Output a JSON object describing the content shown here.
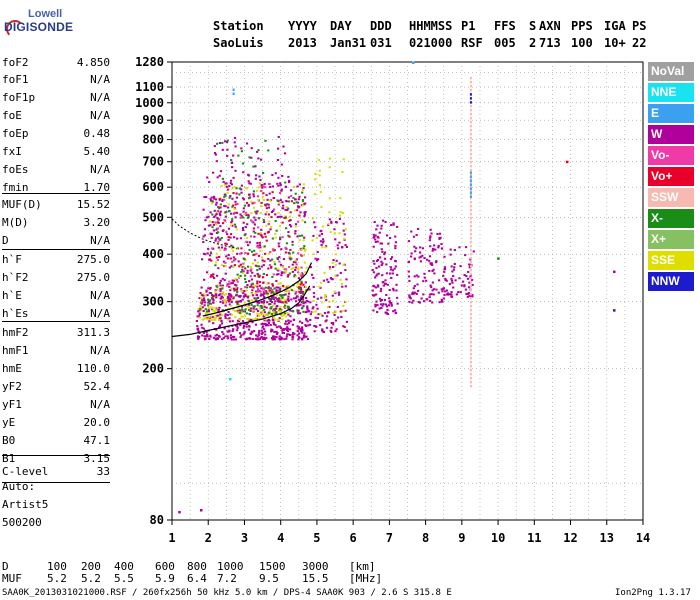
{
  "logo": {
    "line1": "Lowell",
    "line2": "DIGISONDE"
  },
  "header": {
    "labels": [
      "Station",
      "YYYY",
      "DAY",
      "DDD",
      "HHMMSS",
      "P1",
      "FFS",
      "S",
      "AXN",
      "PPS",
      "IGA",
      "PS"
    ],
    "values": [
      "SaoLuis",
      "2013",
      "Jan31",
      "031",
      "021000",
      "RSF",
      "005",
      "2",
      "713",
      "100",
      "10+",
      "22"
    ]
  },
  "parameters": [
    {
      "name": "foF2",
      "value": "4.850"
    },
    {
      "name": "foF1",
      "value": "N/A"
    },
    {
      "name": "foF1p",
      "value": "N/A"
    },
    {
      "name": "foE",
      "value": "N/A"
    },
    {
      "name": "foEp",
      "value": "0.48"
    },
    {
      "name": "fxI",
      "value": "5.40"
    },
    {
      "name": "foEs",
      "value": "N/A"
    },
    {
      "name": "fmin",
      "value": "1.70"
    },
    {
      "name": "MUF(D)",
      "value": "15.52"
    },
    {
      "name": "M(D)",
      "value": "3.20"
    },
    {
      "name": "D",
      "value": "N/A"
    },
    {
      "name": "h`F",
      "value": "275.0"
    },
    {
      "name": "h`F2",
      "value": "275.0"
    },
    {
      "name": "h`E",
      "value": "N/A"
    },
    {
      "name": "h`Es",
      "value": "N/A"
    },
    {
      "name": "hmF2",
      "value": "311.3"
    },
    {
      "name": "hmF1",
      "value": "N/A"
    },
    {
      "name": "hmE",
      "value": "110.0"
    },
    {
      "name": "yF2",
      "value": "52.4"
    },
    {
      "name": "yF1",
      "value": "N/A"
    },
    {
      "name": "yE",
      "value": "20.0"
    },
    {
      "name": "B0",
      "value": "47.1"
    },
    {
      "name": "B1",
      "value": "3.15"
    },
    {
      "name": "C-level",
      "value": "33"
    }
  ],
  "autoscale": {
    "line1": "Auto:",
    "line2": "Artist5",
    "line3": "500200"
  },
  "legend": [
    {
      "label": "NoVal",
      "color": "#a0a0a0"
    },
    {
      "label": "NNE",
      "color": "#19e3f0"
    },
    {
      "label": "E",
      "color": "#3aa0ef"
    },
    {
      "label": "W",
      "color": "#b0009c"
    },
    {
      "label": "Vo-",
      "color": "#f03aa8"
    },
    {
      "label": "Vo+",
      "color": "#e8002a"
    },
    {
      "label": "SSW",
      "color": "#f7b9b0"
    },
    {
      "label": "X-",
      "color": "#1a8c18"
    },
    {
      "label": "X+",
      "color": "#86c060"
    },
    {
      "label": "SSE",
      "color": "#dede00"
    },
    {
      "label": "NNW",
      "color": "#1c1ccc"
    }
  ],
  "distance_table": {
    "d_label": "D",
    "d_values": [
      "100",
      "200",
      "400",
      "600",
      "800",
      "1000",
      "1500",
      "3000"
    ],
    "d_unit": "[km]",
    "muf_label": "MUF",
    "muf_values": [
      "5.2",
      "5.2",
      "5.5",
      "5.9",
      "6.4",
      "7.2",
      "9.5",
      "15.5"
    ],
    "muf_unit": "[MHz]"
  },
  "footer": {
    "left": "SAA0K_2013031021000.RSF / 260fx256h 50 kHz 5.0 km / DPS-4 SAA0K 903 / 2.6 S 315.8 E",
    "right": "Ion2Png 1.3.17"
  },
  "chart_data": {
    "type": "scatter",
    "title": "",
    "xlabel": "",
    "ylabel": "",
    "xlim": [
      1,
      14
    ],
    "ylim": [
      80,
      1280
    ],
    "y_scale": "log",
    "x_ticks": [
      1,
      2,
      3,
      4,
      5,
      6,
      7,
      8,
      9,
      10,
      11,
      12,
      13,
      14
    ],
    "y_ticks": [
      80,
      200,
      300,
      400,
      500,
      600,
      700,
      800,
      900,
      1000,
      1100,
      1280
    ],
    "grid": true,
    "legend_position": "right",
    "clusters": [
      {
        "x_range": [
          1.65,
          4.8
        ],
        "y_range": [
          240,
          330
        ],
        "color": "#b0009c",
        "count": 500
      },
      {
        "x_range": [
          1.7,
          4.2
        ],
        "y_range": [
          270,
          320
        ],
        "color": "#dede00",
        "count": 160
      },
      {
        "x_range": [
          1.7,
          4.6
        ],
        "y_range": [
          280,
          330
        ],
        "color": "#1a8c18",
        "count": 70
      },
      {
        "x_range": [
          1.8,
          4.7
        ],
        "y_range": [
          300,
          650
        ],
        "color": "#b0009c",
        "count": 380
      },
      {
        "x_range": [
          2.0,
          4.7
        ],
        "y_range": [
          320,
          620
        ],
        "color": "#dede00",
        "count": 130
      },
      {
        "x_range": [
          2.0,
          4.7
        ],
        "y_range": [
          320,
          600
        ],
        "color": "#1a8c18",
        "count": 90
      },
      {
        "x_range": [
          2.0,
          4.6
        ],
        "y_range": [
          320,
          600
        ],
        "color": "#e8002a",
        "count": 90
      },
      {
        "x_range": [
          2.0,
          4.6
        ],
        "y_range": [
          320,
          620
        ],
        "color": "#f03aa8",
        "count": 80
      },
      {
        "x_range": [
          2.1,
          4.2
        ],
        "y_range": [
          500,
          820
        ],
        "color": "#b0009c",
        "count": 80
      },
      {
        "x_range": [
          2.1,
          4.2
        ],
        "y_range": [
          500,
          820
        ],
        "color": "#1a8c18",
        "count": 30
      },
      {
        "x_range": [
          4.8,
          5.8
        ],
        "y_range": [
          250,
          500
        ],
        "color": "#b0009c",
        "count": 120
      },
      {
        "x_range": [
          4.8,
          5.8
        ],
        "y_range": [
          280,
          720
        ],
        "color": "#dede00",
        "count": 60
      },
      {
        "x_range": [
          6.5,
          7.2
        ],
        "y_range": [
          280,
          500
        ],
        "color": "#b0009c",
        "count": 130
      },
      {
        "x_range": [
          7.5,
          8.5
        ],
        "y_range": [
          300,
          470
        ],
        "color": "#b0009c",
        "count": 120
      },
      {
        "x_range": [
          8.5,
          9.3
        ],
        "y_range": [
          310,
          420
        ],
        "color": "#b0009c",
        "count": 70
      }
    ],
    "vertical_streaks": [
      {
        "x": 9.25,
        "y_range": [
          180,
          1170
        ],
        "color": "#f7b9b0"
      },
      {
        "x": 9.25,
        "y_range": [
          990,
          1060
        ],
        "color": "#1c1ccc"
      },
      {
        "x": 9.25,
        "y_range": [
          560,
          660
        ],
        "color": "#3aa0ef"
      },
      {
        "x": 2.7,
        "y_range": [
          1060,
          1090
        ],
        "color": "#3aa0ef"
      }
    ],
    "isolated_points": [
      {
        "x": 7.65,
        "y": 1276,
        "color": "#3aa0ef"
      },
      {
        "x": 11.9,
        "y": 700,
        "color": "#e8002a"
      },
      {
        "x": 13.2,
        "y": 360,
        "color": "#b0009c"
      },
      {
        "x": 13.2,
        "y": 285,
        "color": "#1c1ccc"
      },
      {
        "x": 10.0,
        "y": 390,
        "color": "#1a8c18"
      },
      {
        "x": 1.2,
        "y": 84,
        "color": "#b0009c"
      },
      {
        "x": 1.8,
        "y": 85,
        "color": "#b0009c"
      },
      {
        "x": 2.6,
        "y": 188,
        "color": "#19e3f0"
      }
    ],
    "profile_curve": {
      "points": [
        [
          1.0,
          243
        ],
        [
          1.5,
          246
        ],
        [
          2.0,
          252
        ],
        [
          2.5,
          258
        ],
        [
          3.0,
          264
        ],
        [
          3.5,
          270
        ],
        [
          4.0,
          279
        ],
        [
          4.3,
          288
        ],
        [
          4.5,
          298
        ],
        [
          4.65,
          312
        ],
        [
          4.8,
          330
        ]
      ]
    },
    "trace_curve": {
      "points": [
        [
          1.85,
          275
        ],
        [
          2.2,
          280
        ],
        [
          2.6,
          287
        ],
        [
          3.0,
          294
        ],
        [
          3.4,
          302
        ],
        [
          3.8,
          312
        ],
        [
          4.2,
          325
        ],
        [
          4.5,
          340
        ],
        [
          4.7,
          355
        ],
        [
          4.85,
          380
        ]
      ]
    },
    "dotted_curve": {
      "points": [
        [
          1.0,
          495
        ],
        [
          1.2,
          475
        ],
        [
          1.5,
          455
        ],
        [
          1.8,
          440
        ],
        [
          2.1,
          430
        ],
        [
          2.5,
          420
        ],
        [
          2.8,
          414
        ]
      ]
    }
  }
}
